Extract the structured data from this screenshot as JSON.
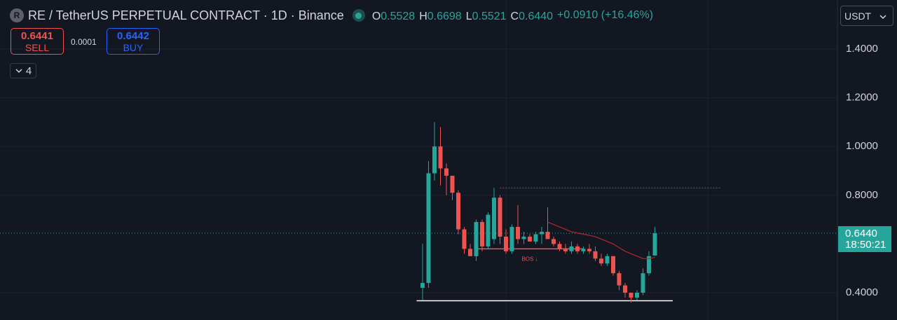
{
  "header": {
    "logo": "R",
    "title": "RE / TetherUS PERPETUAL CONTRACT · 1D · Binance",
    "ohlc": [
      {
        "key": "O",
        "value": "0.5528"
      },
      {
        "key": "H",
        "value": "0.6698"
      },
      {
        "key": "L",
        "value": "0.5521"
      },
      {
        "key": "C",
        "value": "0.6440"
      }
    ],
    "change": "+0.0910 (+16.46%)"
  },
  "order": {
    "sell_price": "0.6441",
    "sell_label": "SELL",
    "spread": "0.0001",
    "buy_price": "0.6442",
    "buy_label": "BUY"
  },
  "indicators_count": "4",
  "currency": "USDT",
  "chart_data": {
    "type": "candlestick",
    "open": [
      0.42,
      0.44,
      0.89,
      1.0,
      0.91,
      0.88,
      0.81,
      0.66,
      0.58,
      0.55,
      0.69,
      0.59,
      0.62,
      0.79,
      0.63,
      0.57,
      0.67,
      0.62,
      0.63,
      0.61,
      0.64,
      0.65,
      0.62,
      0.6,
      0.58,
      0.57,
      0.59,
      0.57,
      0.58,
      0.57,
      0.54,
      0.52,
      0.55,
      0.48,
      0.43,
      0.4,
      0.38,
      0.4,
      0.48,
      0.5528
    ],
    "high": [
      0.6,
      0.94,
      1.1,
      1.08,
      0.93,
      0.88,
      0.82,
      0.67,
      0.6,
      0.7,
      0.7,
      0.73,
      0.83,
      0.8,
      0.66,
      0.68,
      0.76,
      0.65,
      0.64,
      0.65,
      0.67,
      0.75,
      0.63,
      0.61,
      0.6,
      0.61,
      0.6,
      0.59,
      0.6,
      0.59,
      0.56,
      0.56,
      0.55,
      0.49,
      0.44,
      0.4,
      0.41,
      0.5,
      0.57,
      0.6698
    ],
    "low": [
      0.37,
      0.42,
      0.86,
      0.84,
      0.8,
      0.78,
      0.64,
      0.56,
      0.55,
      0.53,
      0.57,
      0.58,
      0.6,
      0.6,
      0.56,
      0.56,
      0.6,
      0.6,
      0.61,
      0.6,
      0.6,
      0.63,
      0.59,
      0.57,
      0.56,
      0.56,
      0.56,
      0.56,
      0.56,
      0.53,
      0.51,
      0.51,
      0.47,
      0.41,
      0.38,
      0.36,
      0.37,
      0.39,
      0.47,
      0.5521
    ],
    "close": [
      0.44,
      0.89,
      1.0,
      0.91,
      0.88,
      0.81,
      0.66,
      0.58,
      0.55,
      0.69,
      0.59,
      0.72,
      0.79,
      0.63,
      0.57,
      0.67,
      0.62,
      0.63,
      0.61,
      0.64,
      0.65,
      0.62,
      0.6,
      0.58,
      0.57,
      0.59,
      0.57,
      0.58,
      0.57,
      0.54,
      0.52,
      0.55,
      0.48,
      0.43,
      0.4,
      0.38,
      0.4,
      0.48,
      0.55,
      0.644
    ],
    "up_color": "#26a69a",
    "down_color": "#ef5350",
    "ma": {
      "color": "#b22833",
      "values": [
        null,
        null,
        null,
        null,
        null,
        null,
        null,
        null,
        null,
        null,
        null,
        null,
        null,
        null,
        null,
        null,
        null,
        null,
        null,
        null,
        null,
        0.69,
        0.68,
        0.67,
        0.66,
        0.65,
        0.645,
        0.64,
        0.635,
        0.63,
        0.62,
        0.61,
        0.6,
        0.585,
        0.57,
        0.56,
        0.55,
        0.54,
        0.54,
        0.545
      ]
    },
    "levels": [
      {
        "value": 0.58,
        "from": 9,
        "to": 27,
        "color": "#ef5350",
        "label": "BOS ↓"
      },
      {
        "value": 0.367,
        "from": -1,
        "to": 42,
        "color": "#ffffff"
      },
      {
        "value": 0.83,
        "from": 13,
        "to": 50,
        "color": "#5d606b",
        "dashed": true
      }
    ],
    "ylim": [
      0.288,
      1.601
    ],
    "yticks": [
      {
        "value": 1.4,
        "label": "1.4000"
      },
      {
        "value": 1.2,
        "label": "1.2000"
      },
      {
        "value": 1.0,
        "label": "1.0000"
      },
      {
        "value": 0.8,
        "label": "0.8000"
      },
      {
        "value": 0.4,
        "label": "0.4000"
      }
    ],
    "grid": true,
    "last_price": {
      "value": 0.644,
      "label": "0.6440",
      "countdown": "18:50:21"
    }
  }
}
